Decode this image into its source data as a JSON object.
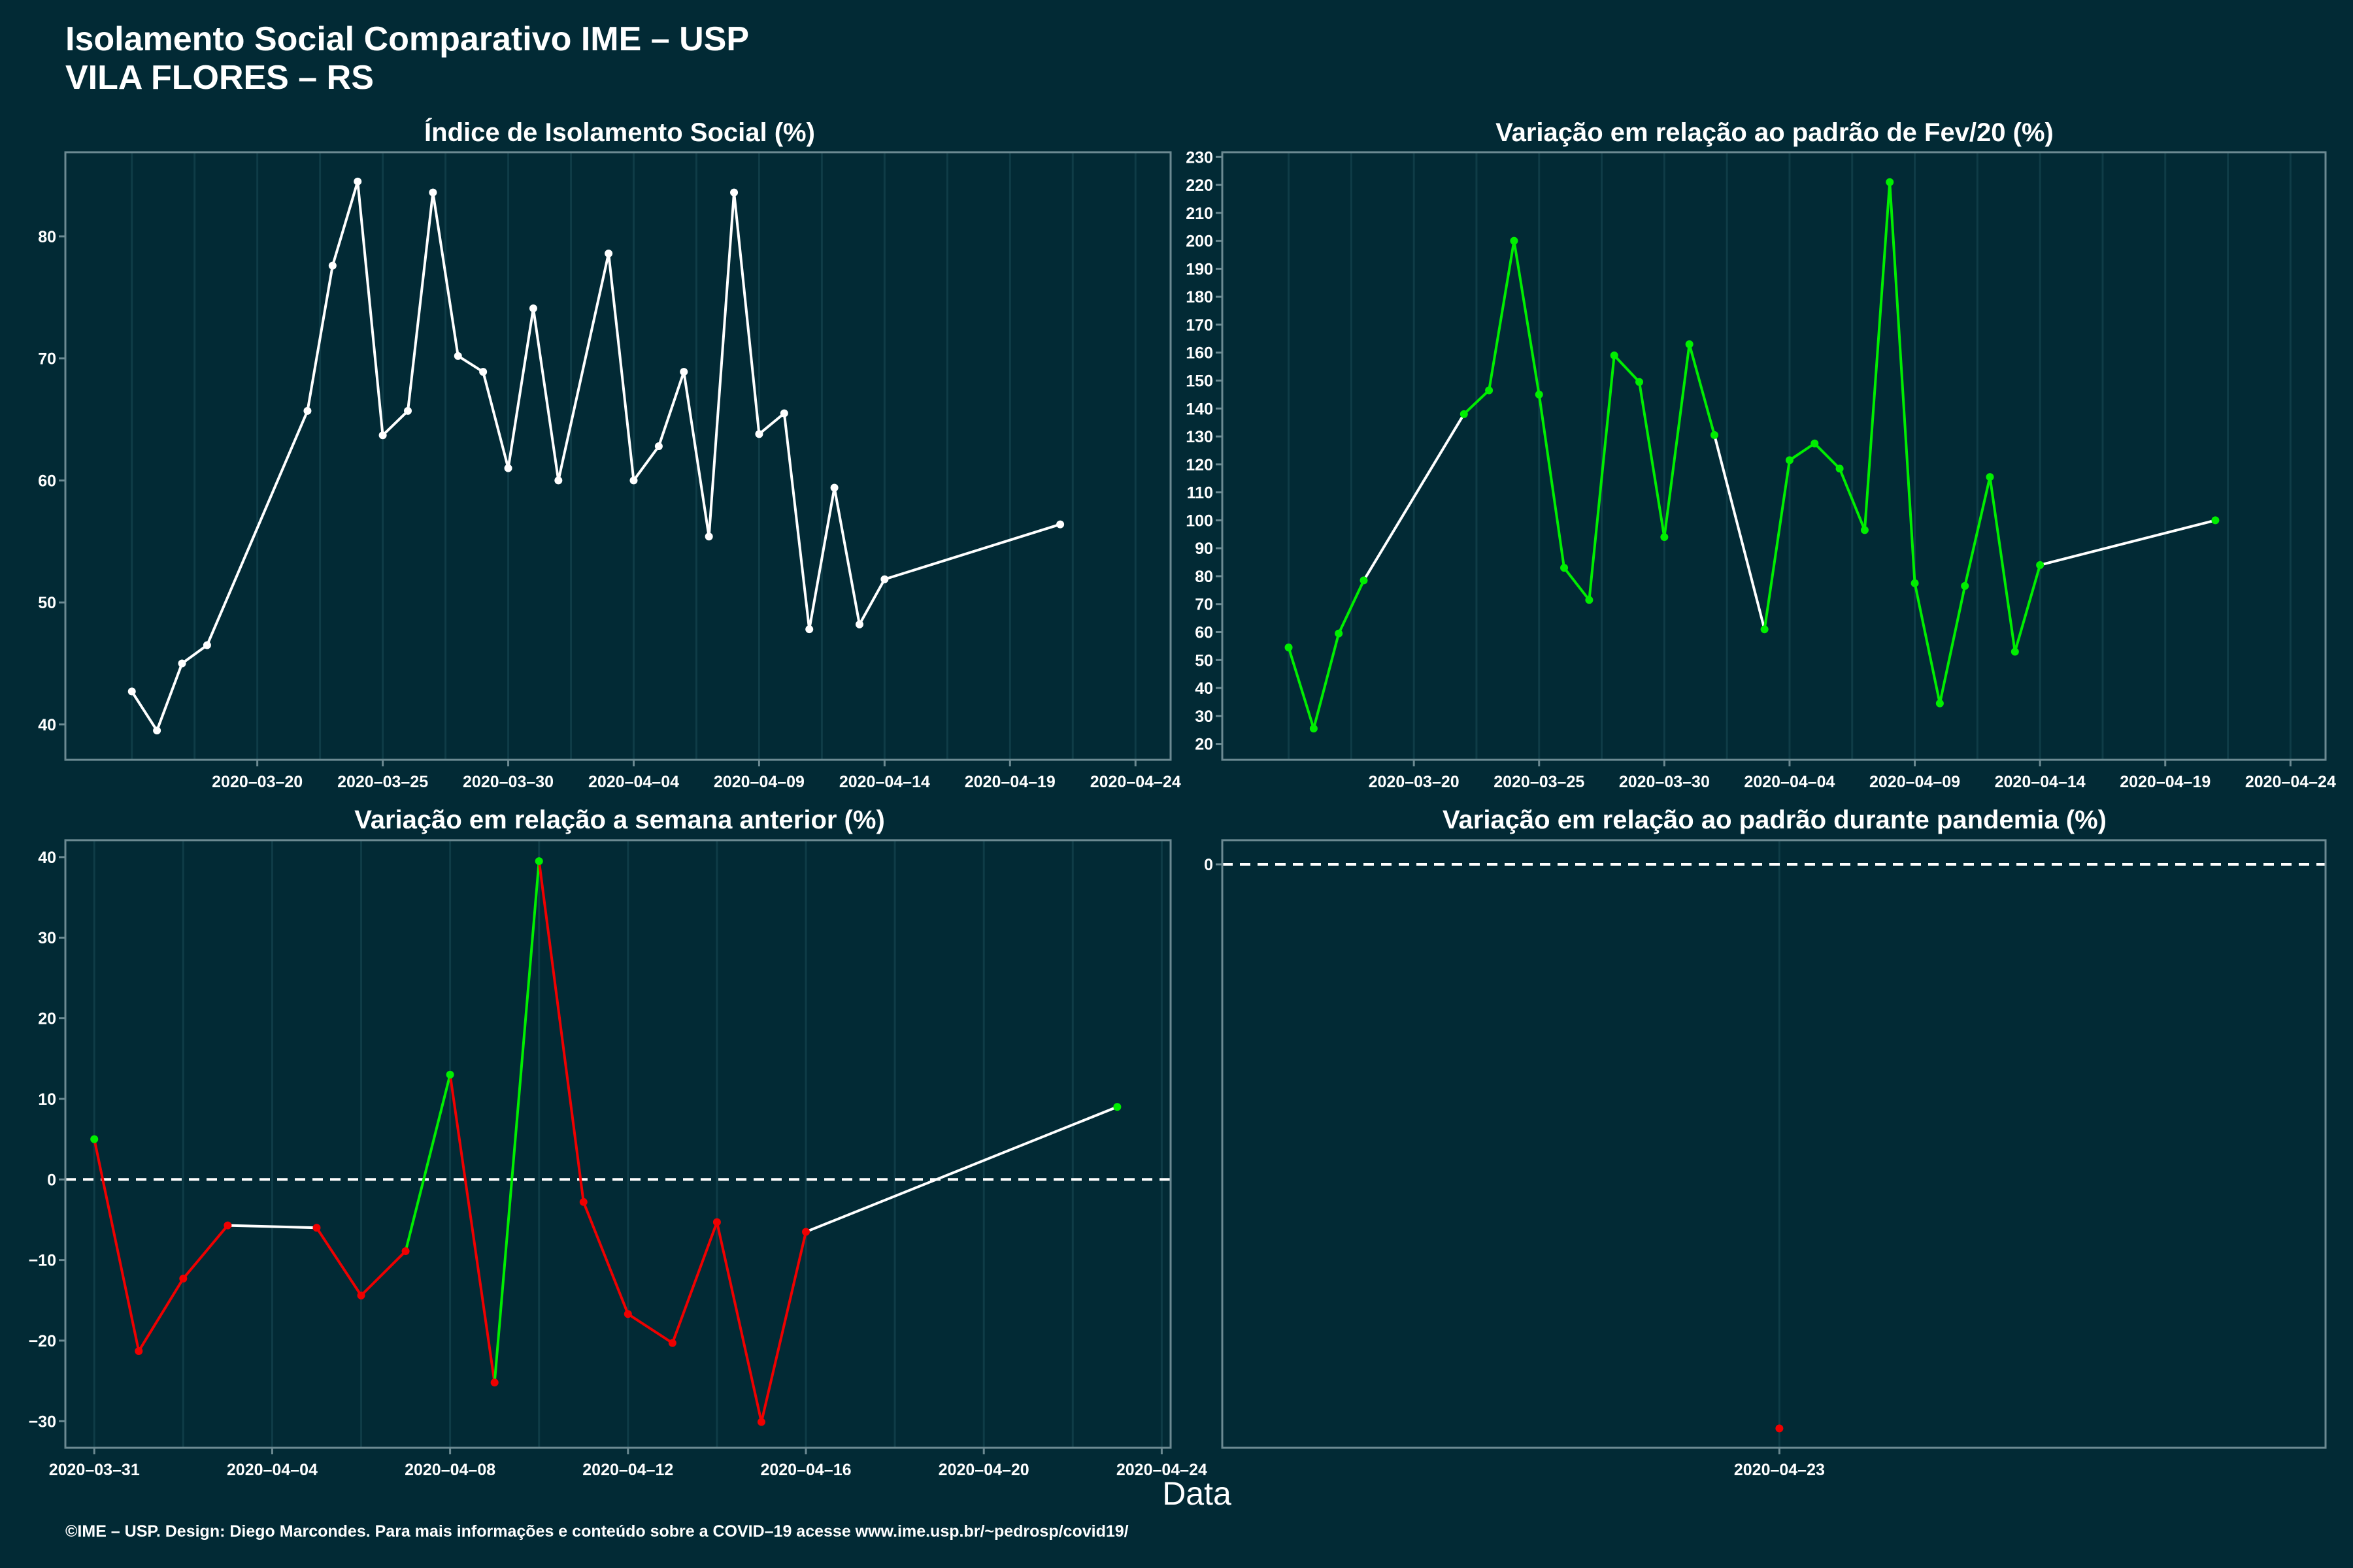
{
  "header": {
    "title": "Isolamento Social Comparativo IME – USP",
    "subtitle": "VILA FLORES – RS"
  },
  "xlabel": "Data",
  "footer": "©IME – USP. Design: Diego Marcondes. Para mais informações e conteúdo sobre a COVID–19 acesse www.ime.usp.br/~pedrosp/covid19/",
  "colors": {
    "background": "#022a35",
    "neutral": "#ffffff",
    "increase": "#00ee00",
    "decrease": "#ee0000",
    "grid": "#0f3c47",
    "border": "#6c8a92"
  },
  "chart_data": [
    {
      "type": "line",
      "title": "Índice de Isolamento Social (%)",
      "x_ticks": [
        "2020-03-20",
        "2020-03-25",
        "2020-03-30",
        "2020-04-04",
        "2020-04-09",
        "2020-04-14",
        "2020-04-19",
        "2020-04-24"
      ],
      "y_ticks": [
        40,
        50,
        60,
        70,
        80
      ],
      "xlim": [
        "2020-03-13",
        "2020-04-25"
      ],
      "ylim": [
        37.1,
        86.9
      ],
      "grid": true,
      "series": [
        {
          "color": "white",
          "points": [
            {
              "x": "2020-03-15",
              "y": 42.7
            },
            {
              "x": "2020-03-16",
              "y": 39.5
            },
            {
              "x": "2020-03-17",
              "y": 45.0
            },
            {
              "x": "2020-03-18",
              "y": 46.5
            },
            {
              "x": "2020-03-22",
              "y": 65.7
            },
            {
              "x": "2020-03-23",
              "y": 77.6
            },
            {
              "x": "2020-03-24",
              "y": 84.5
            },
            {
              "x": "2020-03-25",
              "y": 63.7
            },
            {
              "x": "2020-03-26",
              "y": 65.7
            },
            {
              "x": "2020-03-27",
              "y": 83.6
            },
            {
              "x": "2020-03-28",
              "y": 70.2
            },
            {
              "x": "2020-03-29",
              "y": 68.9
            },
            {
              "x": "2020-03-30",
              "y": 61.0
            },
            {
              "x": "2020-03-31",
              "y": 74.1
            },
            {
              "x": "2020-04-01",
              "y": 60.0
            },
            {
              "x": "2020-04-03",
              "y": 78.6
            },
            {
              "x": "2020-04-04",
              "y": 60.0
            },
            {
              "x": "2020-04-05",
              "y": 62.8
            },
            {
              "x": "2020-04-06",
              "y": 68.9
            },
            {
              "x": "2020-04-07",
              "y": 55.4
            },
            {
              "x": "2020-04-08",
              "y": 83.6
            },
            {
              "x": "2020-04-09",
              "y": 63.8
            },
            {
              "x": "2020-04-10",
              "y": 65.5
            },
            {
              "x": "2020-04-11",
              "y": 47.8
            },
            {
              "x": "2020-04-12",
              "y": 59.4
            },
            {
              "x": "2020-04-13",
              "y": 48.2
            },
            {
              "x": "2020-04-14",
              "y": 51.9
            },
            {
              "x": "2020-04-21",
              "y": 56.4
            }
          ]
        }
      ]
    },
    {
      "type": "line",
      "title": "Variação em relação ao padrão de Fev/20 (%)",
      "x_ticks": [
        "2020-03-20",
        "2020-03-25",
        "2020-03-30",
        "2020-04-04",
        "2020-04-09",
        "2020-04-14",
        "2020-04-19",
        "2020-04-24"
      ],
      "y_ticks": [
        20,
        30,
        40,
        50,
        60,
        70,
        80,
        90,
        100,
        110,
        120,
        130,
        140,
        150,
        160,
        170,
        180,
        190,
        200,
        210,
        220,
        230
      ],
      "xlim": [
        "2020-03-13",
        "2020-04-25"
      ],
      "ylim": [
        14.3,
        231.7
      ],
      "grid": true,
      "series": [
        {
          "segment_colors": "green when rising or falling against a gap of one day, white across missing days",
          "points": [
            {
              "x": "2020-03-15",
              "y": 54.5,
              "color": "green"
            },
            {
              "x": "2020-03-16",
              "y": 25.5,
              "color": "green"
            },
            {
              "x": "2020-03-17",
              "y": 59.5,
              "color": "green"
            },
            {
              "x": "2020-03-18",
              "y": 78.5,
              "color": "green"
            },
            {
              "x": "2020-03-22",
              "y": 138.0,
              "color": "green"
            },
            {
              "x": "2020-03-23",
              "y": 146.5,
              "color": "green"
            },
            {
              "x": "2020-03-24",
              "y": 200.0,
              "color": "green"
            },
            {
              "x": "2020-03-25",
              "y": 145.0,
              "color": "green"
            },
            {
              "x": "2020-03-26",
              "y": 83.0,
              "color": "green"
            },
            {
              "x": "2020-03-27",
              "y": 71.5,
              "color": "green"
            },
            {
              "x": "2020-03-28",
              "y": 159.0,
              "color": "green"
            },
            {
              "x": "2020-03-29",
              "y": 149.5,
              "color": "green"
            },
            {
              "x": "2020-03-30",
              "y": 94.0,
              "color": "green"
            },
            {
              "x": "2020-03-31",
              "y": 163.0,
              "color": "green"
            },
            {
              "x": "2020-04-01",
              "y": 130.5,
              "color": "green"
            },
            {
              "x": "2020-04-03",
              "y": 61.0,
              "color": "green"
            },
            {
              "x": "2020-04-04",
              "y": 121.5,
              "color": "green"
            },
            {
              "x": "2020-04-05",
              "y": 127.5,
              "color": "green"
            },
            {
              "x": "2020-04-06",
              "y": 118.5,
              "color": "green"
            },
            {
              "x": "2020-04-07",
              "y": 96.5,
              "color": "green"
            },
            {
              "x": "2020-04-08",
              "y": 221.0,
              "color": "green"
            },
            {
              "x": "2020-04-09",
              "y": 77.5,
              "color": "green"
            },
            {
              "x": "2020-04-10",
              "y": 34.5,
              "color": "green"
            },
            {
              "x": "2020-04-11",
              "y": 76.5,
              "color": "green"
            },
            {
              "x": "2020-04-12",
              "y": 115.5,
              "color": "green"
            },
            {
              "x": "2020-04-13",
              "y": 53.0,
              "color": "green"
            },
            {
              "x": "2020-04-14",
              "y": 84.0,
              "color": "green"
            },
            {
              "x": "2020-04-21",
              "y": 100.0,
              "color": "green"
            }
          ]
        }
      ]
    },
    {
      "type": "line",
      "title": "Variação em relação a semana anterior (%)",
      "x_ticks": [
        "2020-03-31",
        "2020-04-04",
        "2020-04-08",
        "2020-04-12",
        "2020-04-16",
        "2020-04-20",
        "2020-04-24"
      ],
      "y_ticks": [
        -30,
        -20,
        -10,
        0,
        10,
        20,
        30,
        40
      ],
      "xlim": [
        "2020-03-30",
        "2020-04-24"
      ],
      "ylim": [
        -33.3,
        42.1
      ],
      "reference_line": 0,
      "grid": true,
      "series": [
        {
          "points": [
            {
              "x": "2020-03-31",
              "y": 5.0,
              "color": "green"
            },
            {
              "x": "2020-04-01",
              "y": -21.3,
              "color": "red"
            },
            {
              "x": "2020-04-02",
              "y": -12.3,
              "color": "red"
            },
            {
              "x": "2020-04-03",
              "y": -5.7,
              "color": "red"
            },
            {
              "x": "2020-04-05",
              "y": -6.0,
              "color": "red"
            },
            {
              "x": "2020-04-06",
              "y": -14.4,
              "color": "red"
            },
            {
              "x": "2020-04-07",
              "y": -8.9,
              "color": "red"
            },
            {
              "x": "2020-04-08",
              "y": 13.0,
              "color": "green"
            },
            {
              "x": "2020-04-09",
              "y": -25.2,
              "color": "red"
            },
            {
              "x": "2020-04-10",
              "y": 39.5,
              "color": "green"
            },
            {
              "x": "2020-04-11",
              "y": -2.8,
              "color": "red"
            },
            {
              "x": "2020-04-12",
              "y": -16.7,
              "color": "red"
            },
            {
              "x": "2020-04-13",
              "y": -20.3,
              "color": "red"
            },
            {
              "x": "2020-04-14",
              "y": -5.3,
              "color": "red"
            },
            {
              "x": "2020-04-15",
              "y": -30.1,
              "color": "red"
            },
            {
              "x": "2020-04-16",
              "y": -6.5,
              "color": "red"
            },
            {
              "x": "2020-04-23",
              "y": 9.0,
              "color": "green"
            }
          ]
        }
      ]
    },
    {
      "type": "scatter",
      "title": "Variação em relação ao padrão durante pandemia (%)",
      "x_ticks": [
        "2020-04-23"
      ],
      "y_ticks": [
        0
      ],
      "reference_line": 0,
      "grid": true,
      "series": [
        {
          "points": [
            {
              "x": "2020-04-23",
              "y": -35,
              "color": "red"
            }
          ]
        }
      ]
    }
  ]
}
